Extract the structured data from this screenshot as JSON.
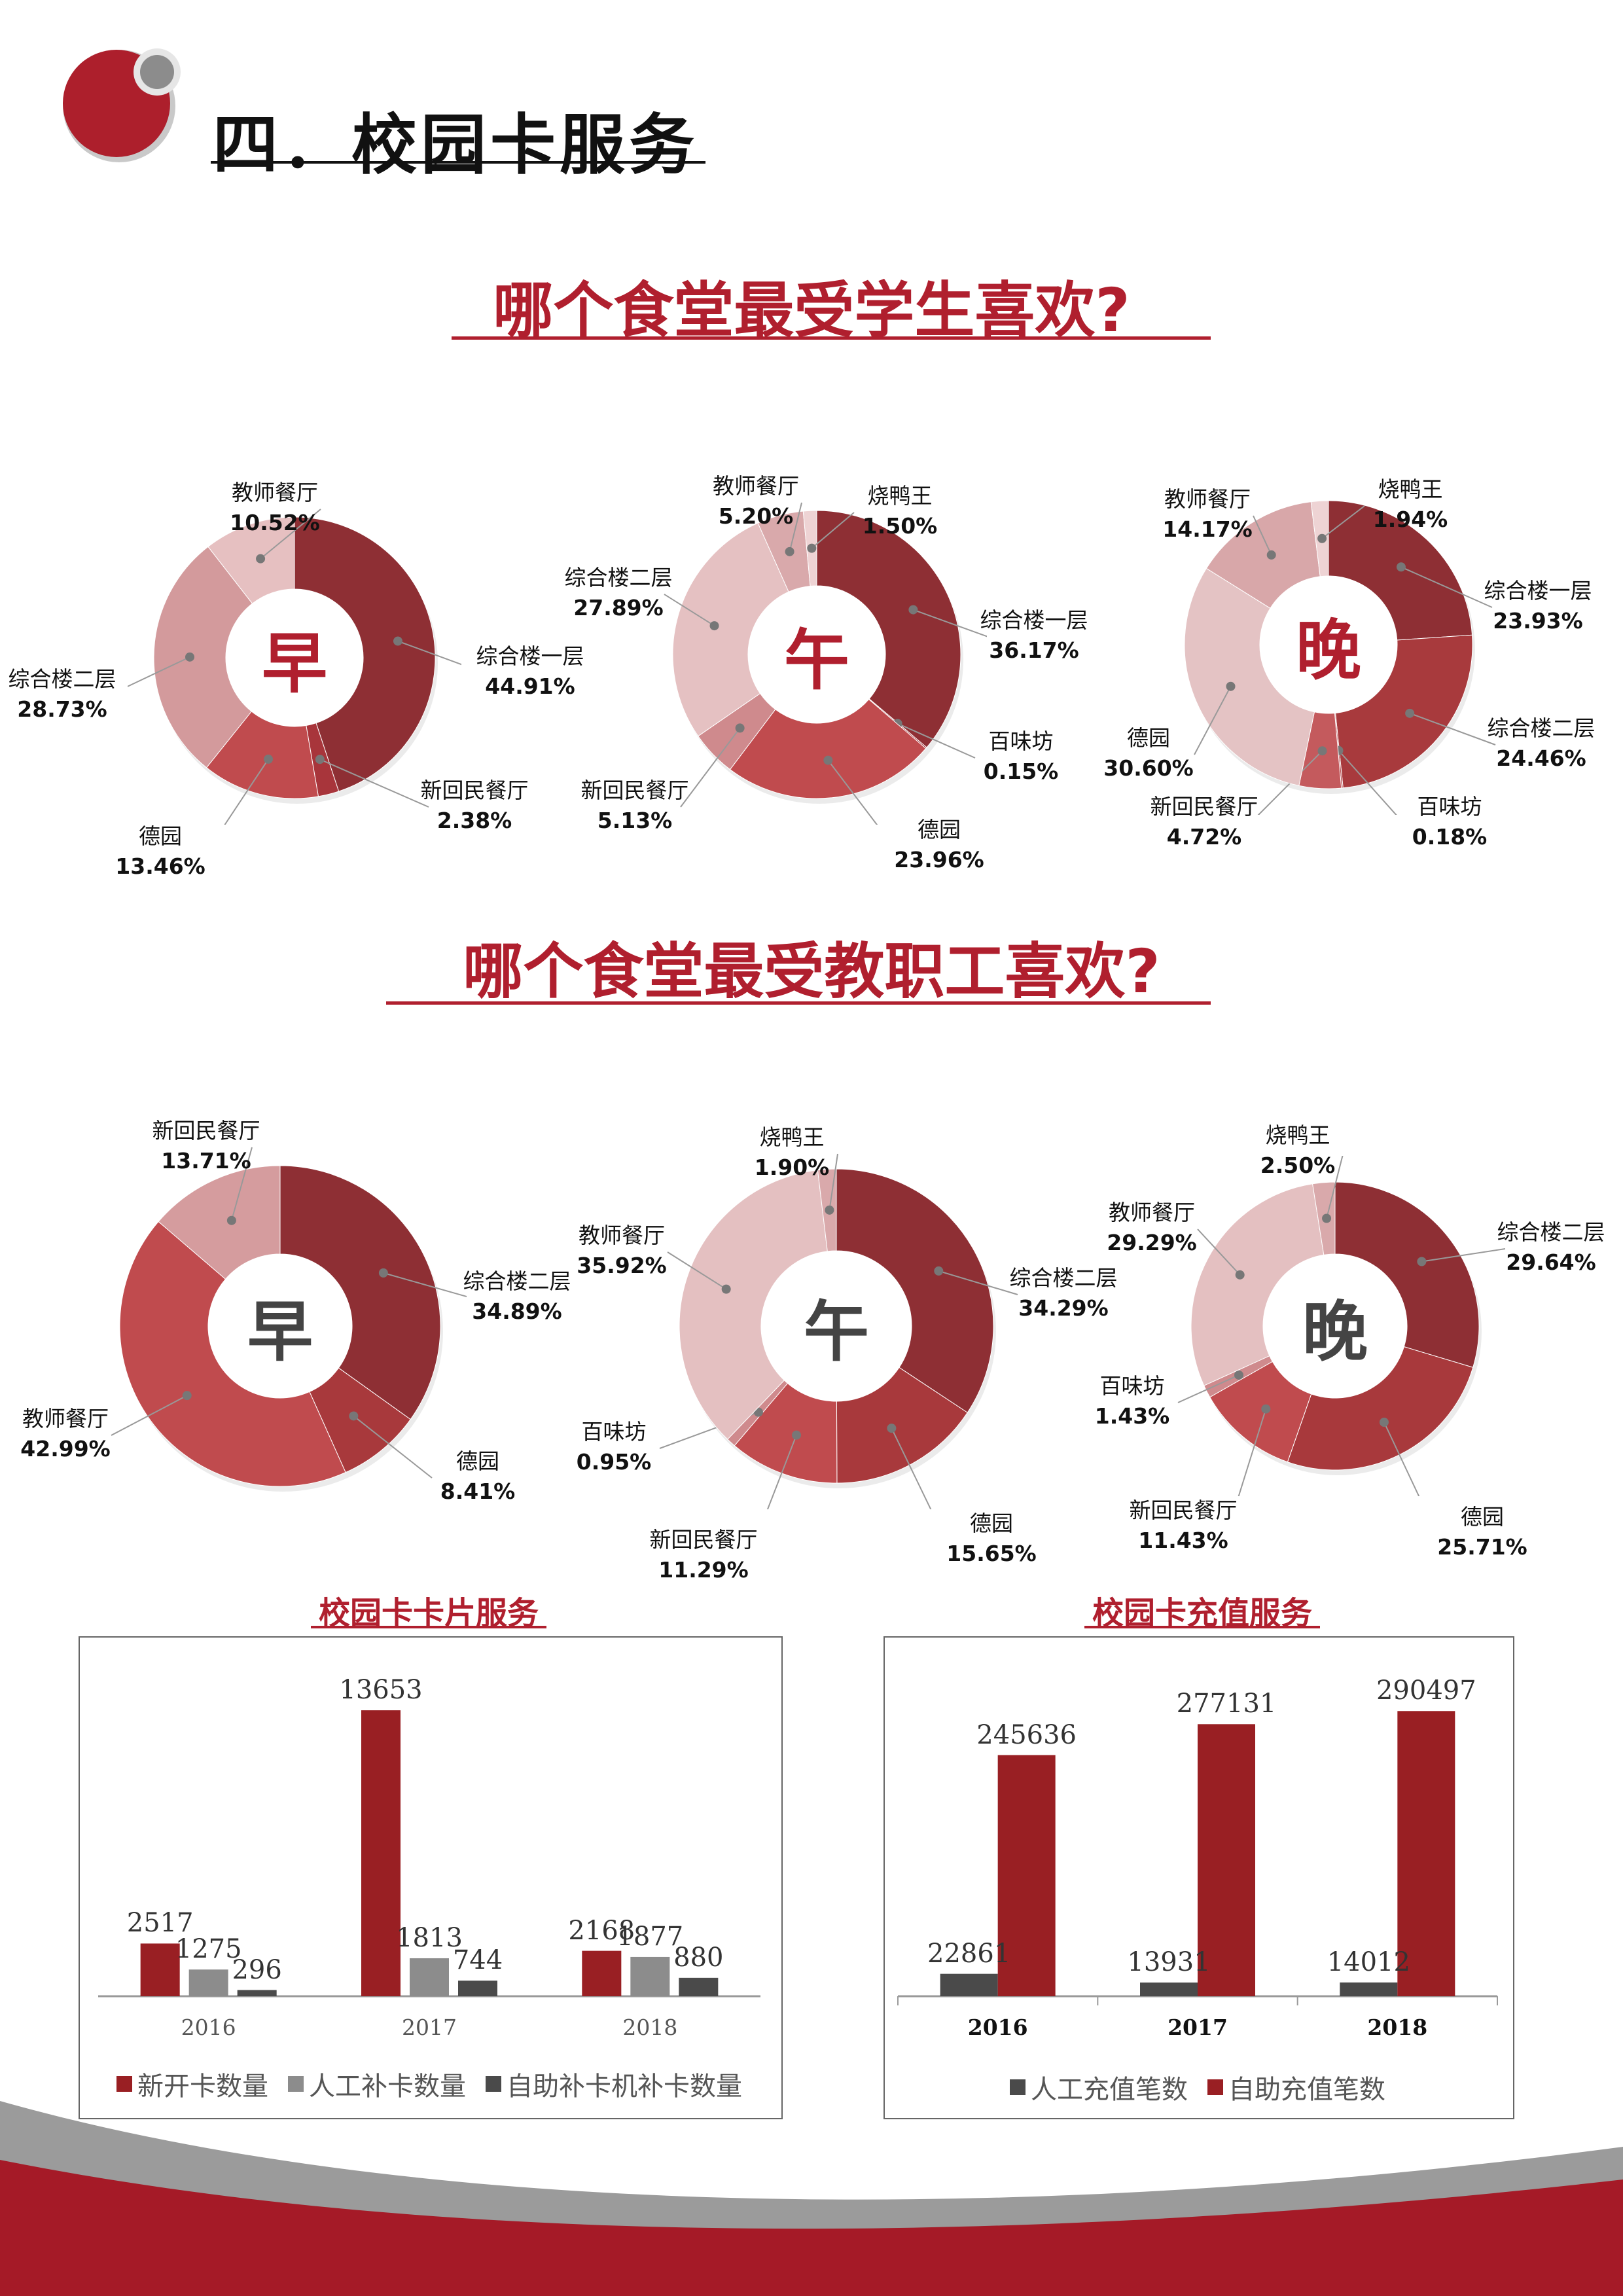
{
  "header": {
    "title": "四．校园卡服务"
  },
  "section_students": {
    "title": "哪个食堂最受学生喜欢?"
  },
  "section_staff": {
    "title": "哪个食堂最受教职工喜欢?"
  },
  "chart_data": [
    {
      "type": "pie",
      "center_label": "早",
      "center_color": "#b01f2e",
      "slices": [
        {
          "name": "综合楼一层",
          "value": 44.91,
          "pct": "44.91%",
          "color": "#8e2f34"
        },
        {
          "name": "新回民餐厅",
          "value": 2.38,
          "pct": "2.38%",
          "color": "#a8353b"
        },
        {
          "name": "德园",
          "value": 13.46,
          "pct": "13.46%",
          "color": "#c04b4e"
        },
        {
          "name": "综合楼二层",
          "value": 28.73,
          "pct": "28.73%",
          "color": "#d39a9c"
        },
        {
          "name": "教师餐厅",
          "value": 10.52,
          "pct": "10.52%",
          "color": "#e6c0c1"
        }
      ]
    },
    {
      "type": "pie",
      "center_label": "午",
      "center_color": "#b01f2e",
      "slices": [
        {
          "name": "综合楼一层",
          "value": 36.17,
          "pct": "36.17%",
          "color": "#8e2f34"
        },
        {
          "name": "百味坊",
          "value": 0.15,
          "pct": "0.15%",
          "color": "#a03237"
        },
        {
          "name": "德园",
          "value": 23.96,
          "pct": "23.96%",
          "color": "#c04b4e"
        },
        {
          "name": "新回民餐厅",
          "value": 5.13,
          "pct": "5.13%",
          "color": "#cf8a8d"
        },
        {
          "name": "综合楼二层",
          "value": 27.89,
          "pct": "27.89%",
          "color": "#e5c1c2"
        },
        {
          "name": "教师餐厅",
          "value": 5.2,
          "pct": "5.20%",
          "color": "#d9a9ab"
        },
        {
          "name": "烧鸭王",
          "value": 1.5,
          "pct": "1.50%",
          "color": "#eed3d4"
        }
      ]
    },
    {
      "type": "pie",
      "center_label": "晚",
      "center_color": "#b01f2e",
      "slices": [
        {
          "name": "综合楼一层",
          "value": 23.93,
          "pct": "23.93%",
          "color": "#8e2f34"
        },
        {
          "name": "综合楼二层",
          "value": 24.46,
          "pct": "24.46%",
          "color": "#a83a3d"
        },
        {
          "name": "百味坊",
          "value": 0.18,
          "pct": "0.18%",
          "color": "#b4474a"
        },
        {
          "name": "新回民餐厅",
          "value": 4.72,
          "pct": "4.72%",
          "color": "#c45a5d"
        },
        {
          "name": "德园",
          "value": 30.6,
          "pct": "30.60%",
          "color": "#e4c3c4"
        },
        {
          "name": "教师餐厅",
          "value": 14.17,
          "pct": "14.17%",
          "color": "#d8a7a9"
        },
        {
          "name": "烧鸭王",
          "value": 1.94,
          "pct": "1.94%",
          "color": "#eed3d4"
        }
      ]
    },
    {
      "type": "pie",
      "center_label": "早",
      "center_color": "#444444",
      "slices": [
        {
          "name": "综合楼二层",
          "value": 34.89,
          "pct": "34.89%",
          "color": "#8e2f34"
        },
        {
          "name": "德园",
          "value": 8.41,
          "pct": "8.41%",
          "color": "#a8393c"
        },
        {
          "name": "教师餐厅",
          "value": 42.99,
          "pct": "42.99%",
          "color": "#c04b4e"
        },
        {
          "name": "新回民餐厅",
          "value": 13.71,
          "pct": "13.71%",
          "color": "#d59c9e"
        }
      ]
    },
    {
      "type": "pie",
      "center_label": "午",
      "center_color": "#444444",
      "slices": [
        {
          "name": "综合楼二层",
          "value": 34.29,
          "pct": "34.29%",
          "color": "#8e2f34"
        },
        {
          "name": "德园",
          "value": 15.65,
          "pct": "15.65%",
          "color": "#a8393c"
        },
        {
          "name": "新回民餐厅",
          "value": 11.29,
          "pct": "11.29%",
          "color": "#c04b4e"
        },
        {
          "name": "百味坊",
          "value": 0.95,
          "pct": "0.95%",
          "color": "#cf8a8d"
        },
        {
          "name": "教师餐厅",
          "value": 35.92,
          "pct": "35.92%",
          "color": "#e4c0c1"
        },
        {
          "name": "烧鸭王",
          "value": 1.9,
          "pct": "1.90%",
          "color": "#d9a9ab"
        }
      ]
    },
    {
      "type": "pie",
      "center_label": "晚",
      "center_color": "#444444",
      "slices": [
        {
          "name": "综合楼二层",
          "value": 29.64,
          "pct": "29.64%",
          "color": "#8e2f34"
        },
        {
          "name": "德园",
          "value": 25.71,
          "pct": "25.71%",
          "color": "#a8393c"
        },
        {
          "name": "新回民餐厅",
          "value": 11.43,
          "pct": "11.43%",
          "color": "#c04b4e"
        },
        {
          "name": "百味坊",
          "value": 1.43,
          "pct": "1.43%",
          "color": "#cf8a8d"
        },
        {
          "name": "教师餐厅",
          "value": 29.29,
          "pct": "29.29%",
          "color": "#e4c0c1"
        },
        {
          "name": "烧鸭王",
          "value": 2.5,
          "pct": "2.50%",
          "color": "#d9a9ab"
        }
      ]
    },
    {
      "type": "bar",
      "title": "校园卡卡片服务",
      "categories": [
        "2016",
        "2017",
        "2018"
      ],
      "ylim": [
        0,
        15000
      ],
      "series": [
        {
          "name": "新开卡数量",
          "values": [
            2517,
            13653,
            2168
          ],
          "color": "#991f23"
        },
        {
          "name": "人工补卡数量",
          "values": [
            1275,
            1813,
            1877
          ],
          "color": "#8c8c8c"
        },
        {
          "name": "自助补卡机补卡数量",
          "values": [
            296,
            744,
            880
          ],
          "color": "#4a4a4a"
        }
      ]
    },
    {
      "type": "bar",
      "title": "校园卡充值服务",
      "categories": [
        "2016",
        "2017",
        "2018"
      ],
      "ylim": [
        0,
        320000
      ],
      "series": [
        {
          "name": "人工充值笔数",
          "values": [
            22861,
            13931,
            14012
          ],
          "color": "#4a4a4a"
        },
        {
          "name": "自助充值笔数",
          "values": [
            245636,
            277131,
            290497
          ],
          "color": "#991f23"
        }
      ]
    }
  ]
}
